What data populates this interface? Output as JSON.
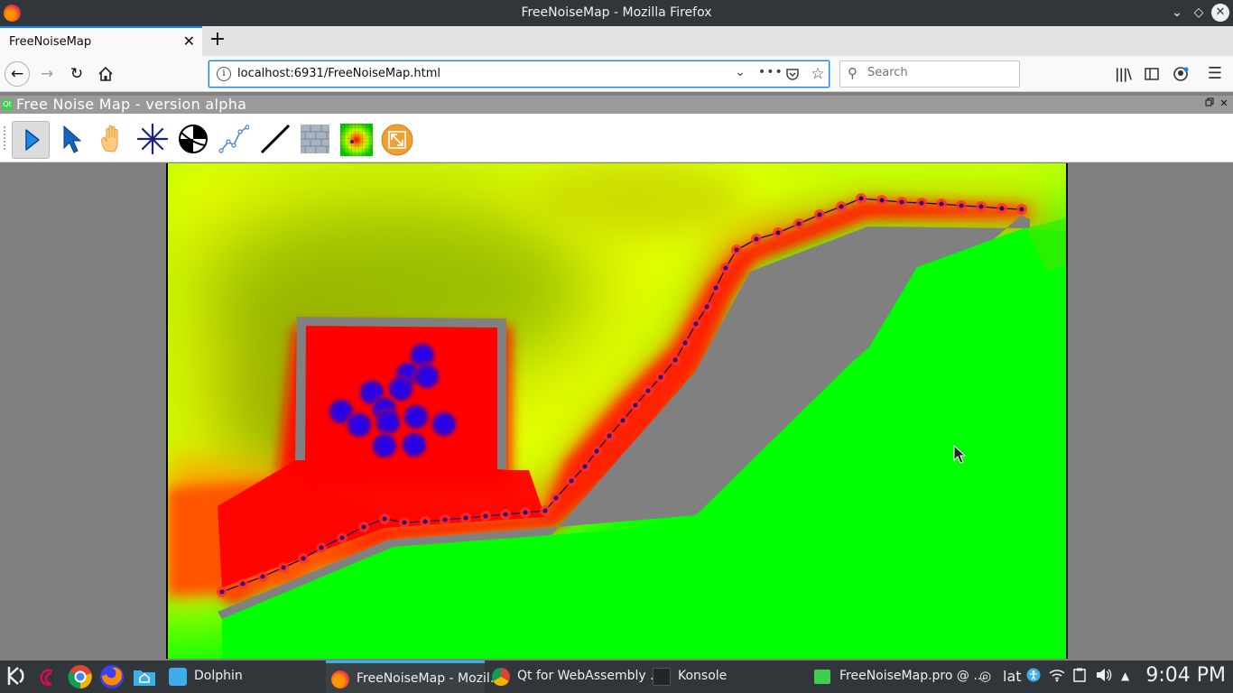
{
  "window": {
    "title": "FreeNoiseMap - Mozilla Firefox"
  },
  "browser": {
    "tab_title": "FreeNoiseMap",
    "url": "localhost:6931/FreeNoiseMap.html",
    "search_placeholder": "Search"
  },
  "app": {
    "title": "Free Noise Map - version alpha",
    "tools": [
      {
        "name": "run",
        "icon": "play-icon",
        "active": true
      },
      {
        "name": "select",
        "icon": "pointer-icon",
        "active": false
      },
      {
        "name": "pan",
        "icon": "hand-icon",
        "active": false
      },
      {
        "name": "point-source",
        "icon": "asterisk-icon",
        "active": false
      },
      {
        "name": "receiver",
        "icon": "ball-icon",
        "active": false
      },
      {
        "name": "polyline",
        "icon": "polyline-icon",
        "active": false
      },
      {
        "name": "line",
        "icon": "line-icon",
        "active": false
      },
      {
        "name": "wall",
        "icon": "brick-wall-icon",
        "active": false
      },
      {
        "name": "heatmap",
        "icon": "noise-grid-icon",
        "active": false
      },
      {
        "name": "fit-view",
        "icon": "expand-icon",
        "active": false
      }
    ],
    "colors": {
      "quiet": "#00ff00",
      "medium": "#ffff00",
      "loud": "#ff0000",
      "source": "#0000cc",
      "wall": "#808080"
    }
  },
  "taskbar": {
    "tasks": [
      {
        "label": "Dolphin",
        "icon": "dolphin-icon",
        "active": false
      },
      {
        "label": "FreeNoiseMap - Mozil...",
        "icon": "firefox-icon",
        "active": true
      },
      {
        "label": "Qt for WebAssembly ...",
        "icon": "chrome-icon",
        "active": false
      },
      {
        "label": "Konsole",
        "icon": "konsole-icon",
        "active": false
      },
      {
        "label": "FreeNoiseMap.pro @ ...",
        "icon": "qtcreator-icon",
        "active": false
      }
    ],
    "keyboard_layout": "lat",
    "clock": "9:04 PM"
  }
}
